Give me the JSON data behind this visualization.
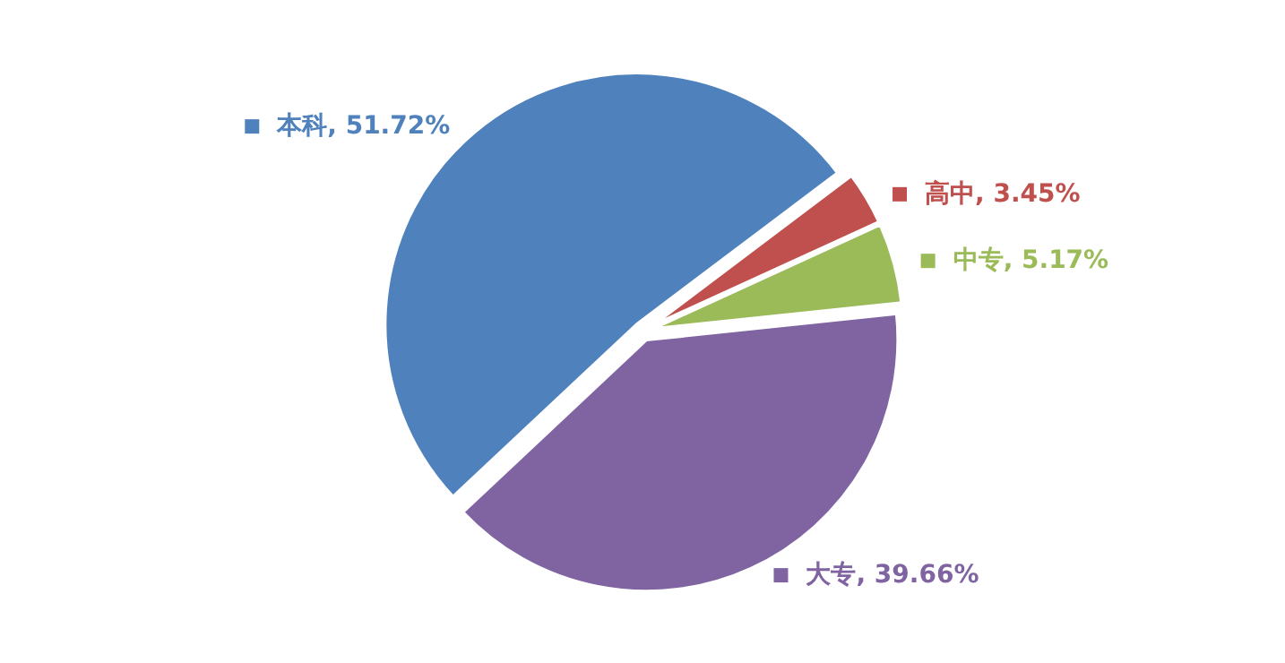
{
  "chart_data": {
    "type": "pie",
    "categories": [
      "本科",
      "高中",
      "中专",
      "大专"
    ],
    "values": [
      51.72,
      3.45,
      5.17,
      39.66
    ],
    "value_labels": [
      ", 51.72%",
      ", 3.45%",
      ", 5.17%",
      ", 39.66%"
    ],
    "colors": [
      "#4f81bd",
      "#c0504d",
      "#9bbb59",
      "#8064a2"
    ],
    "legend": true
  }
}
